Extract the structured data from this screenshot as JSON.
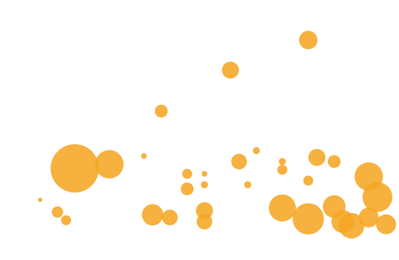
{
  "chart_data": {
    "type": "scatter",
    "title": "",
    "xlabel": "",
    "ylabel": "",
    "xlim": [
      1978,
      2022
    ],
    "ylim": [
      0,
      1650000
    ],
    "y_tick_labels": [],
    "x_tick_labels": [],
    "grid": false,
    "legend": "none",
    "bubble_color": "#F5A623",
    "points": [
      {
        "x": 2012,
        "y": 1450000,
        "size": 13
      },
      {
        "x": 2003,
        "y": 1230000,
        "size": 12
      },
      {
        "x": 1995,
        "y": 930000,
        "size": 9
      },
      {
        "x": 1985,
        "y": 510000,
        "size": 34
      },
      {
        "x": 1989,
        "y": 540000,
        "size": 20
      },
      {
        "x": 1993,
        "y": 600000,
        "size": 4
      },
      {
        "x": 2006,
        "y": 640000,
        "size": 5
      },
      {
        "x": 2004,
        "y": 560000,
        "size": 11
      },
      {
        "x": 2009,
        "y": 560000,
        "size": 5
      },
      {
        "x": 2009,
        "y": 500000,
        "size": 7
      },
      {
        "x": 2013,
        "y": 590000,
        "size": 12
      },
      {
        "x": 2015,
        "y": 560000,
        "size": 9
      },
      {
        "x": 1998,
        "y": 470000,
        "size": 7
      },
      {
        "x": 2000,
        "y": 470000,
        "size": 4
      },
      {
        "x": 1998,
        "y": 360000,
        "size": 9
      },
      {
        "x": 2000,
        "y": 390000,
        "size": 5
      },
      {
        "x": 2005,
        "y": 390000,
        "size": 5
      },
      {
        "x": 2012,
        "y": 420000,
        "size": 7
      },
      {
        "x": 2019,
        "y": 450000,
        "size": 20
      },
      {
        "x": 2020,
        "y": 300000,
        "size": 21
      },
      {
        "x": 1981,
        "y": 280000,
        "size": 3
      },
      {
        "x": 1983,
        "y": 190000,
        "size": 8
      },
      {
        "x": 1984,
        "y": 130000,
        "size": 7
      },
      {
        "x": 1994,
        "y": 170000,
        "size": 15
      },
      {
        "x": 1996,
        "y": 150000,
        "size": 11
      },
      {
        "x": 2000,
        "y": 200000,
        "size": 12
      },
      {
        "x": 2000,
        "y": 120000,
        "size": 11
      },
      {
        "x": 2009,
        "y": 220000,
        "size": 19
      },
      {
        "x": 2012,
        "y": 140000,
        "size": 22
      },
      {
        "x": 2015,
        "y": 230000,
        "size": 16
      },
      {
        "x": 2016,
        "y": 120000,
        "size": 16
      },
      {
        "x": 2017,
        "y": 90000,
        "size": 18
      },
      {
        "x": 2019,
        "y": 150000,
        "size": 14
      },
      {
        "x": 2021,
        "y": 100000,
        "size": 14
      }
    ]
  }
}
